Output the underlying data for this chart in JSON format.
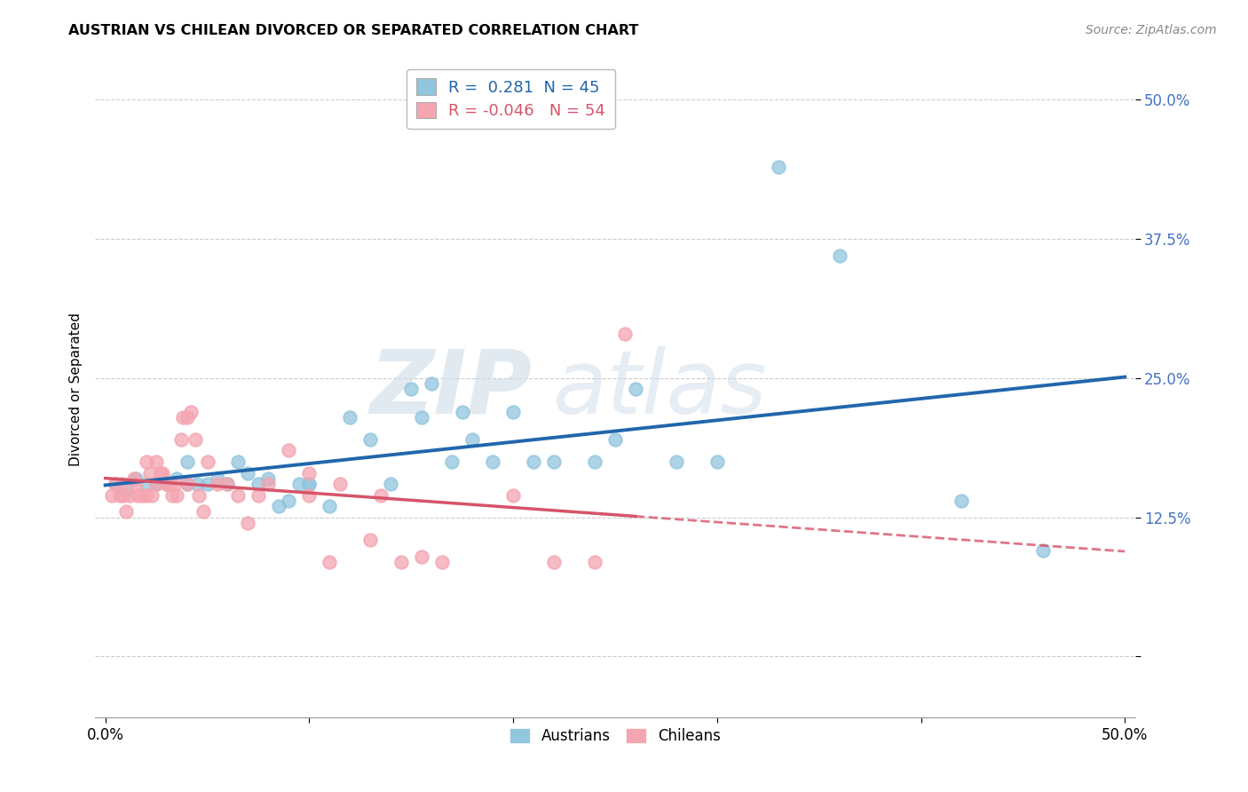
{
  "title": "AUSTRIAN VS CHILEAN DIVORCED OR SEPARATED CORRELATION CHART",
  "source": "Source: ZipAtlas.com",
  "ylabel": "Divorced or Separated",
  "yticks": [
    0.0,
    0.125,
    0.25,
    0.375,
    0.5
  ],
  "ytick_labels": [
    "",
    "12.5%",
    "25.0%",
    "37.5%",
    "50.0%"
  ],
  "xticks": [
    0.0,
    0.1,
    0.2,
    0.3,
    0.4,
    0.5
  ],
  "xlim": [
    -0.005,
    0.505
  ],
  "ylim": [
    -0.055,
    0.535
  ],
  "legend_blue_R": "0.281",
  "legend_blue_N": "45",
  "legend_pink_R": "-0.046",
  "legend_pink_N": "54",
  "watermark_zip": "ZIP",
  "watermark_atlas": "atlas",
  "blue_color": "#92c5de",
  "pink_color": "#f4a5b0",
  "trendline_blue": "#2166ac",
  "trendline_pink": "#d6546a",
  "blue_scatter_x": [
    0.005,
    0.01,
    0.015,
    0.02,
    0.025,
    0.03,
    0.035,
    0.04,
    0.04,
    0.045,
    0.05,
    0.055,
    0.06,
    0.065,
    0.07,
    0.075,
    0.08,
    0.085,
    0.09,
    0.095,
    0.1,
    0.1,
    0.11,
    0.12,
    0.13,
    0.14,
    0.15,
    0.155,
    0.16,
    0.17,
    0.175,
    0.18,
    0.19,
    0.2,
    0.21,
    0.22,
    0.24,
    0.25,
    0.26,
    0.28,
    0.3,
    0.33,
    0.36,
    0.42,
    0.46
  ],
  "blue_scatter_y": [
    0.155,
    0.15,
    0.16,
    0.155,
    0.155,
    0.155,
    0.16,
    0.175,
    0.155,
    0.155,
    0.155,
    0.16,
    0.155,
    0.175,
    0.165,
    0.155,
    0.16,
    0.135,
    0.14,
    0.155,
    0.155,
    0.155,
    0.135,
    0.215,
    0.195,
    0.155,
    0.24,
    0.215,
    0.245,
    0.175,
    0.22,
    0.195,
    0.175,
    0.22,
    0.175,
    0.175,
    0.175,
    0.195,
    0.24,
    0.175,
    0.175,
    0.44,
    0.36,
    0.14,
    0.095
  ],
  "pink_scatter_x": [
    0.003,
    0.005,
    0.007,
    0.008,
    0.009,
    0.01,
    0.012,
    0.014,
    0.015,
    0.016,
    0.018,
    0.02,
    0.02,
    0.022,
    0.023,
    0.025,
    0.025,
    0.027,
    0.028,
    0.03,
    0.03,
    0.032,
    0.033,
    0.034,
    0.035,
    0.037,
    0.038,
    0.04,
    0.04,
    0.042,
    0.044,
    0.046,
    0.048,
    0.05,
    0.055,
    0.06,
    0.065,
    0.07,
    0.075,
    0.08,
    0.09,
    0.1,
    0.1,
    0.11,
    0.115,
    0.13,
    0.135,
    0.145,
    0.155,
    0.165,
    0.2,
    0.22,
    0.24,
    0.255
  ],
  "pink_scatter_y": [
    0.145,
    0.155,
    0.145,
    0.155,
    0.145,
    0.13,
    0.145,
    0.16,
    0.155,
    0.145,
    0.145,
    0.175,
    0.145,
    0.165,
    0.145,
    0.155,
    0.175,
    0.165,
    0.165,
    0.155,
    0.155,
    0.155,
    0.145,
    0.155,
    0.145,
    0.195,
    0.215,
    0.215,
    0.155,
    0.22,
    0.195,
    0.145,
    0.13,
    0.175,
    0.155,
    0.155,
    0.145,
    0.12,
    0.145,
    0.155,
    0.185,
    0.165,
    0.145,
    0.085,
    0.155,
    0.105,
    0.145,
    0.085,
    0.09,
    0.085,
    0.145,
    0.085,
    0.085,
    0.29
  ],
  "grid_color": "#cccccc",
  "legend_edge_color": "#bbbbbb",
  "axis_label_color": "#4472c4"
}
